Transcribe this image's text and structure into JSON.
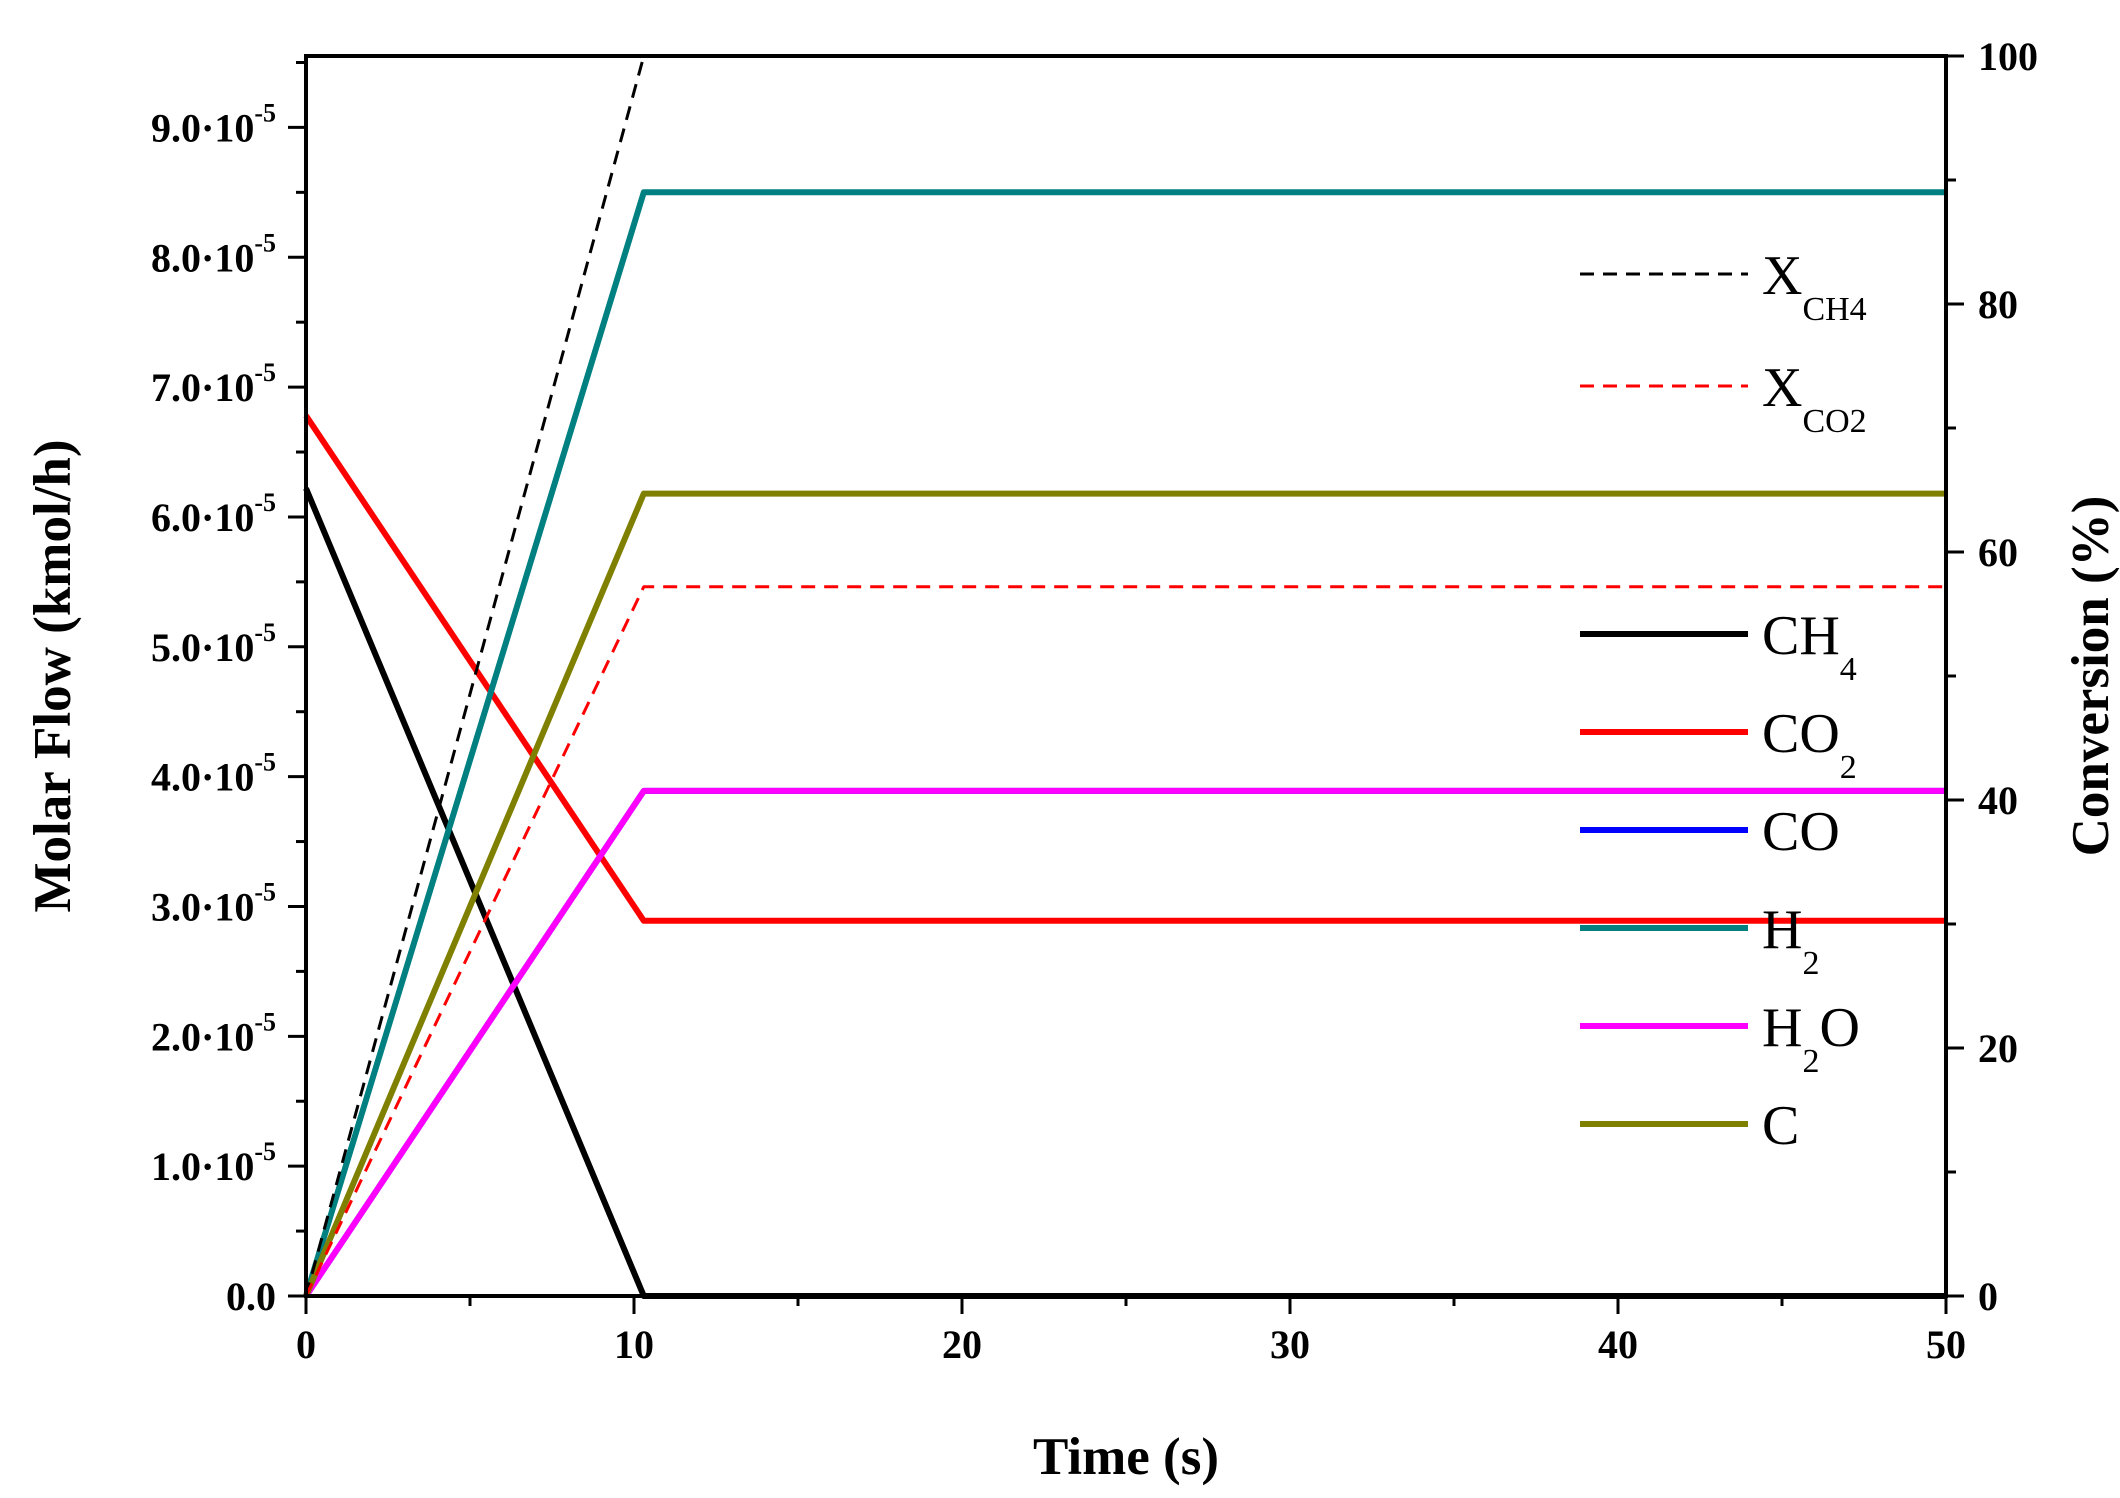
{
  "chart_data": {
    "type": "line",
    "xlabel": "Time (s)",
    "ylabel": "Molar Flow (kmol/h)",
    "y2label": "Conversion (%)",
    "xlim": [
      0,
      50
    ],
    "ylim": [
      0,
      9.55e-05
    ],
    "y2lim": [
      0,
      100
    ],
    "x_ticks": [
      0,
      10,
      20,
      30,
      40,
      50
    ],
    "y_ticks": [
      0,
      1e-05,
      2e-05,
      3e-05,
      4e-05,
      5e-05,
      6e-05,
      7e-05,
      8e-05,
      9e-05
    ],
    "y_tick_labels": [
      {
        "base": "0.0",
        "exp": ""
      },
      {
        "base": "1.0·10",
        "exp": "-5"
      },
      {
        "base": "2.0·10",
        "exp": "-5"
      },
      {
        "base": "3.0·10",
        "exp": "-5"
      },
      {
        "base": "4.0·10",
        "exp": "-5"
      },
      {
        "base": "5.0·10",
        "exp": "-5"
      },
      {
        "base": "6.0·10",
        "exp": "-5"
      },
      {
        "base": "7.0·10",
        "exp": "-5"
      },
      {
        "base": "8.0·10",
        "exp": "-5"
      },
      {
        "base": "9.0·10",
        "exp": "-5"
      }
    ],
    "y2_ticks": [
      0,
      20,
      40,
      60,
      80,
      100
    ],
    "series": [
      {
        "name": "CH4",
        "label": "CH",
        "sub": "4",
        "axis": "left",
        "style": "solid",
        "color": "#000000",
        "x": [
          0,
          10.3,
          50
        ],
        "y": [
          6.22e-05,
          0,
          0
        ]
      },
      {
        "name": "CO2",
        "label": "CO",
        "sub": "2",
        "axis": "left",
        "style": "solid",
        "color": "#ff0000",
        "x": [
          0,
          10.3,
          50
        ],
        "y": [
          6.78e-05,
          2.89e-05,
          2.89e-05
        ]
      },
      {
        "name": "CO",
        "label": "CO",
        "sub": "",
        "axis": "left",
        "style": "solid",
        "color": "#0000ff",
        "x": [
          0,
          10.3,
          50
        ],
        "y": [
          0,
          3.89e-05,
          3.89e-05
        ]
      },
      {
        "name": "H2",
        "label": "H",
        "sub": "2",
        "axis": "left",
        "style": "solid",
        "color": "#008080",
        "x": [
          0,
          10.3,
          50
        ],
        "y": [
          0,
          8.5e-05,
          8.5e-05
        ]
      },
      {
        "name": "H2O",
        "label": "H",
        "sub": "2",
        "suffix": "O",
        "axis": "left",
        "style": "solid",
        "color": "#ff00ff",
        "x": [
          0,
          10.3,
          50
        ],
        "y": [
          0,
          3.89e-05,
          3.89e-05
        ]
      },
      {
        "name": "C",
        "label": "C",
        "sub": "",
        "axis": "left",
        "style": "solid",
        "color": "#808000",
        "x": [
          0,
          10.3,
          50
        ],
        "y": [
          0,
          6.18e-05,
          6.18e-05
        ]
      },
      {
        "name": "X_CH4",
        "label": "X",
        "sub": "CH4",
        "axis": "right",
        "style": "dashed",
        "color": "#000000",
        "x": [
          0,
          10.3,
          50
        ],
        "y": [
          0,
          100,
          100
        ]
      },
      {
        "name": "X_CO2",
        "label": "X",
        "sub": "CO2",
        "axis": "right",
        "style": "dashed",
        "color": "#ff0000",
        "x": [
          0,
          10.3,
          50
        ],
        "y": [
          0,
          57.2,
          57.2
        ]
      }
    ],
    "legend_dashed": [
      "X_CH4",
      "X_CO2"
    ],
    "legend_solid": [
      "CH4",
      "CO2",
      "CO",
      "H2",
      "H2O",
      "C"
    ],
    "legend_placement": "right side, inside plot"
  }
}
